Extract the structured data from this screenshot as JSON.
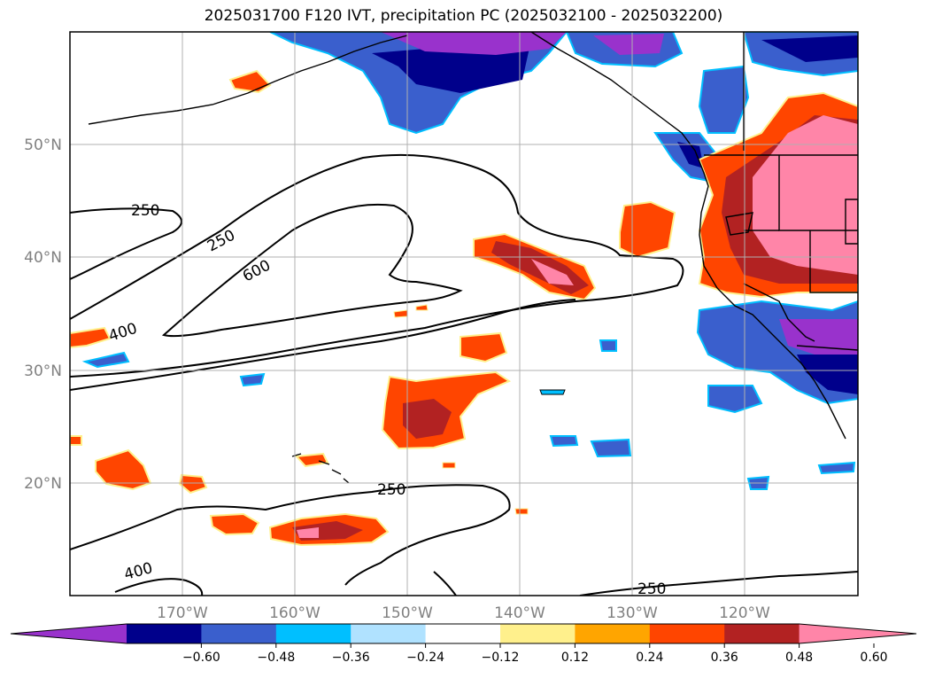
{
  "title": "2025031700 F120 IVT, precipitation PC (2025032100 - 2025032200)",
  "map": {
    "lat_ticks": [
      "50°N",
      "40°N",
      "30°N",
      "20°N"
    ],
    "lon_ticks": [
      "170°W",
      "160°W",
      "150°W",
      "140°W",
      "130°W",
      "120°W"
    ],
    "grid": true,
    "contour_levels": [
      250,
      400,
      600
    ],
    "contour_labels": [
      "250",
      "250",
      "600",
      "400",
      "250",
      "400",
      "250"
    ]
  },
  "colorbar": {
    "ticks": [
      "−0.60",
      "−0.48",
      "−0.36",
      "−0.24",
      "−0.12",
      "0.12",
      "0.24",
      "0.36",
      "0.48",
      "0.60"
    ],
    "colors": [
      "#9932cc",
      "#00008b",
      "#3a5fcd",
      "#00bfff",
      "#b0e2ff",
      "#ffffff",
      "#fff08c",
      "#ffa500",
      "#ff4500",
      "#b22222",
      "#ff85a8"
    ],
    "extend": "both"
  }
}
